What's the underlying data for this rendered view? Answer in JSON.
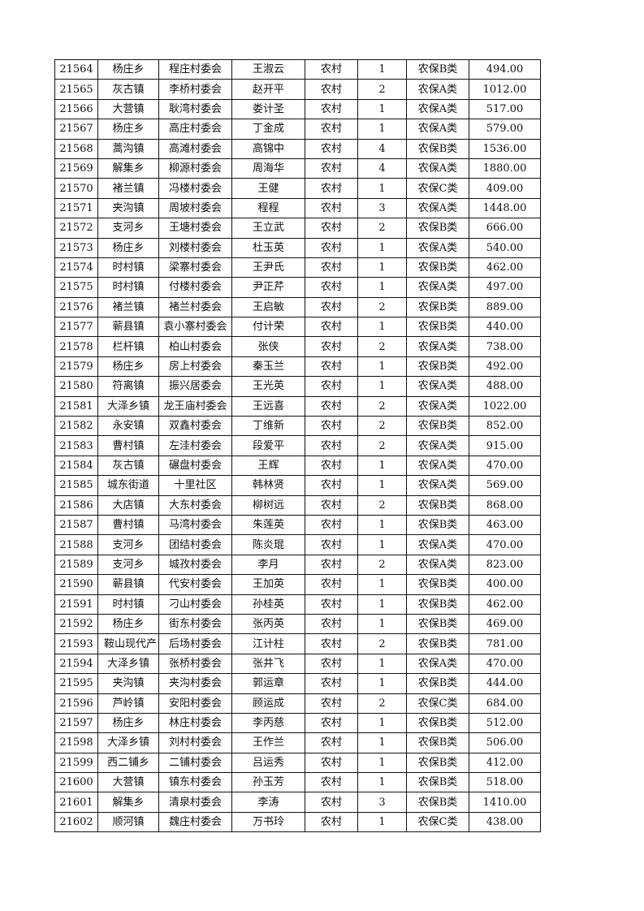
{
  "table": {
    "rows": [
      [
        "21564",
        "杨庄乡",
        "程庄村委会",
        "王淑云",
        "农村",
        "1",
        "农保B类",
        "494.00"
      ],
      [
        "21565",
        "灰古镇",
        "李桥村委会",
        "赵开平",
        "农村",
        "2",
        "农保A类",
        "1012.00"
      ],
      [
        "21566",
        "大营镇",
        "耿湾村委会",
        "娄计圣",
        "农村",
        "1",
        "农保A类",
        "517.00"
      ],
      [
        "21567",
        "杨庄乡",
        "高庄村委会",
        "丁金成",
        "农村",
        "1",
        "农保A类",
        "579.00"
      ],
      [
        "21568",
        "蒿沟镇",
        "高滩村委会",
        "高锦中",
        "农村",
        "4",
        "农保B类",
        "1536.00"
      ],
      [
        "21569",
        "解集乡",
        "柳源村委会",
        "周海华",
        "农村",
        "4",
        "农保A类",
        "1880.00"
      ],
      [
        "21570",
        "褚兰镇",
        "冯楼村委会",
        "王健",
        "农村",
        "1",
        "农保C类",
        "409.00"
      ],
      [
        "21571",
        "夹沟镇",
        "周坡村委会",
        "程程",
        "农村",
        "3",
        "农保A类",
        "1448.00"
      ],
      [
        "21572",
        "支河乡",
        "王塘村委会",
        "王立武",
        "农村",
        "2",
        "农保B类",
        "666.00"
      ],
      [
        "21573",
        "杨庄乡",
        "刘楼村委会",
        "杜玉英",
        "农村",
        "1",
        "农保A类",
        "540.00"
      ],
      [
        "21574",
        "时村镇",
        "梁寨村委会",
        "王尹氏",
        "农村",
        "1",
        "农保B类",
        "462.00"
      ],
      [
        "21575",
        "时村镇",
        "付楼村委会",
        "尹正芹",
        "农村",
        "1",
        "农保A类",
        "497.00"
      ],
      [
        "21576",
        "褚兰镇",
        "褚兰村委会",
        "王启敏",
        "农村",
        "2",
        "农保B类",
        "889.00"
      ],
      [
        "21577",
        "蕲县镇",
        "袁小寨村委会",
        "付计荣",
        "农村",
        "1",
        "农保B类",
        "440.00"
      ],
      [
        "21578",
        "栏杆镇",
        "柏山村委会",
        "张侠",
        "农村",
        "2",
        "农保A类",
        "738.00"
      ],
      [
        "21579",
        "杨庄乡",
        "房上村委会",
        "秦玉兰",
        "农村",
        "1",
        "农保B类",
        "492.00"
      ],
      [
        "21580",
        "符离镇",
        "振兴居委会",
        "王光英",
        "农村",
        "1",
        "农保A类",
        "488.00"
      ],
      [
        "21581",
        "大泽乡镇",
        "龙王庙村委会",
        "王远喜",
        "农村",
        "2",
        "农保A类",
        "1022.00"
      ],
      [
        "21582",
        "永安镇",
        "双鑫村委会",
        "丁维新",
        "农村",
        "2",
        "农保B类",
        "852.00"
      ],
      [
        "21583",
        "曹村镇",
        "左洼村委会",
        "段爱平",
        "农村",
        "2",
        "农保A类",
        "915.00"
      ],
      [
        "21584",
        "灰古镇",
        "碾盘村委会",
        "王辉",
        "农村",
        "1",
        "农保A类",
        "470.00"
      ],
      [
        "21585",
        "城东街道",
        "十里社区",
        "韩林贤",
        "农村",
        "1",
        "农保A类",
        "569.00"
      ],
      [
        "21586",
        "大店镇",
        "大东村委会",
        "柳树远",
        "农村",
        "2",
        "农保B类",
        "868.00"
      ],
      [
        "21587",
        "曹村镇",
        "马湾村委会",
        "朱莲英",
        "农村",
        "1",
        "农保B类",
        "463.00"
      ],
      [
        "21588",
        "支河乡",
        "团结村委会",
        "陈炎琨",
        "农村",
        "1",
        "农保A类",
        "470.00"
      ],
      [
        "21589",
        "支河乡",
        "城孜村委会",
        "李月",
        "农村",
        "2",
        "农保A类",
        "823.00"
      ],
      [
        "21590",
        "蕲县镇",
        "代安村委会",
        "王加英",
        "农村",
        "1",
        "农保B类",
        "400.00"
      ],
      [
        "21591",
        "时村镇",
        "刁山村委会",
        "孙桂英",
        "农村",
        "1",
        "农保B类",
        "462.00"
      ],
      [
        "21592",
        "杨庄乡",
        "街东村委会",
        "张丙英",
        "农村",
        "1",
        "农保B类",
        "469.00"
      ],
      [
        "21593",
        "鞍山现代产",
        "后场村委会",
        "江计柱",
        "农村",
        "2",
        "农保B类",
        "781.00"
      ],
      [
        "21594",
        "大泽乡镇",
        "张桥村委会",
        "张井飞",
        "农村",
        "1",
        "农保A类",
        "470.00"
      ],
      [
        "21595",
        "夹沟镇",
        "夹沟村委会",
        "郭运章",
        "农村",
        "1",
        "农保B类",
        "444.00"
      ],
      [
        "21596",
        "芦岭镇",
        "安阳村委会",
        "顾运成",
        "农村",
        "2",
        "农保C类",
        "684.00"
      ],
      [
        "21597",
        "杨庄乡",
        "林庄村委会",
        "李丙慈",
        "农村",
        "1",
        "农保B类",
        "512.00"
      ],
      [
        "21598",
        "大泽乡镇",
        "刘村村委会",
        "王作兰",
        "农村",
        "1",
        "农保B类",
        "506.00"
      ],
      [
        "21599",
        "西二铺乡",
        "二铺村委会",
        "吕运秀",
        "农村",
        "1",
        "农保B类",
        "412.00"
      ],
      [
        "21600",
        "大营镇",
        "镇东村委会",
        "孙玉芳",
        "农村",
        "1",
        "农保B类",
        "518.00"
      ],
      [
        "21601",
        "解集乡",
        "清泉村委会",
        "李涛",
        "农村",
        "3",
        "农保B类",
        "1410.00"
      ],
      [
        "21602",
        "顺河镇",
        "魏庄村委会",
        "万书玲",
        "农村",
        "1",
        "农保C类",
        "438.00"
      ]
    ]
  }
}
